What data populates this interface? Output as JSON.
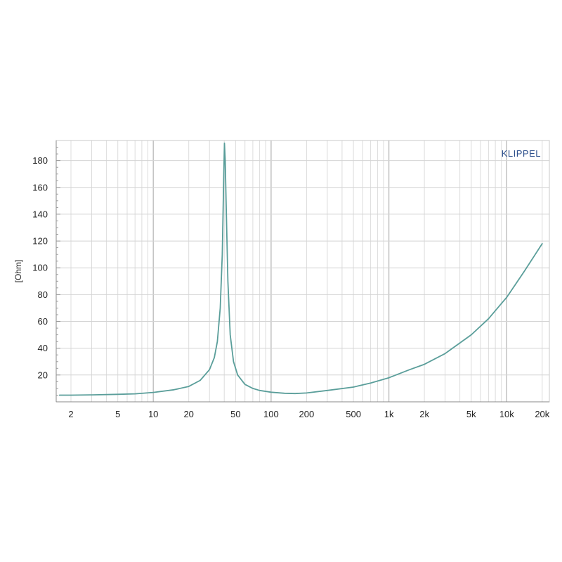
{
  "chart_data": {
    "type": "line",
    "title": "",
    "xlabel": "",
    "ylabel": "[Ohm]",
    "brand": "KLIPPEL",
    "x_scale": "log",
    "xlim": [
      1.5,
      23000
    ],
    "ylim": [
      0,
      195
    ],
    "grid": true,
    "x_ticks": [
      {
        "value": 2,
        "label": "2"
      },
      {
        "value": 5,
        "label": "5"
      },
      {
        "value": 10,
        "label": "10"
      },
      {
        "value": 20,
        "label": "20"
      },
      {
        "value": 50,
        "label": "50"
      },
      {
        "value": 100,
        "label": "100"
      },
      {
        "value": 200,
        "label": "200"
      },
      {
        "value": 500,
        "label": "500"
      },
      {
        "value": 1000,
        "label": "1k"
      },
      {
        "value": 2000,
        "label": "2k"
      },
      {
        "value": 5000,
        "label": "5k"
      },
      {
        "value": 10000,
        "label": "10k"
      },
      {
        "value": 20000,
        "label": "20k"
      }
    ],
    "y_ticks": [
      {
        "value": 20,
        "label": "20"
      },
      {
        "value": 40,
        "label": "40"
      },
      {
        "value": 60,
        "label": "60"
      },
      {
        "value": 80,
        "label": "80"
      },
      {
        "value": 100,
        "label": "100"
      },
      {
        "value": 120,
        "label": "120"
      },
      {
        "value": 140,
        "label": "140"
      },
      {
        "value": 160,
        "label": "160"
      },
      {
        "value": 180,
        "label": "180"
      }
    ],
    "series": [
      {
        "name": "",
        "color": "#5a9e9a",
        "points": [
          [
            1.6,
            5
          ],
          [
            2,
            5
          ],
          [
            3,
            5.2
          ],
          [
            5,
            5.6
          ],
          [
            7,
            6
          ],
          [
            10,
            7
          ],
          [
            15,
            9
          ],
          [
            20,
            11.5
          ],
          [
            25,
            16
          ],
          [
            30,
            24
          ],
          [
            33,
            33
          ],
          [
            35,
            45
          ],
          [
            37,
            70
          ],
          [
            38.5,
            110
          ],
          [
            39.5,
            160
          ],
          [
            40.2,
            193
          ],
          [
            40.8,
            180
          ],
          [
            41.5,
            150
          ],
          [
            43,
            90
          ],
          [
            45,
            50
          ],
          [
            48,
            30
          ],
          [
            52,
            20
          ],
          [
            60,
            13
          ],
          [
            70,
            10
          ],
          [
            80,
            8.5
          ],
          [
            100,
            7.2
          ],
          [
            130,
            6.4
          ],
          [
            160,
            6.2
          ],
          [
            200,
            6.6
          ],
          [
            300,
            8.5
          ],
          [
            500,
            11
          ],
          [
            700,
            14
          ],
          [
            1000,
            18
          ],
          [
            1500,
            24
          ],
          [
            2000,
            28
          ],
          [
            3000,
            36
          ],
          [
            5000,
            50
          ],
          [
            7000,
            62
          ],
          [
            10000,
            78
          ],
          [
            14000,
            97
          ],
          [
            20000,
            118
          ]
        ]
      }
    ]
  }
}
